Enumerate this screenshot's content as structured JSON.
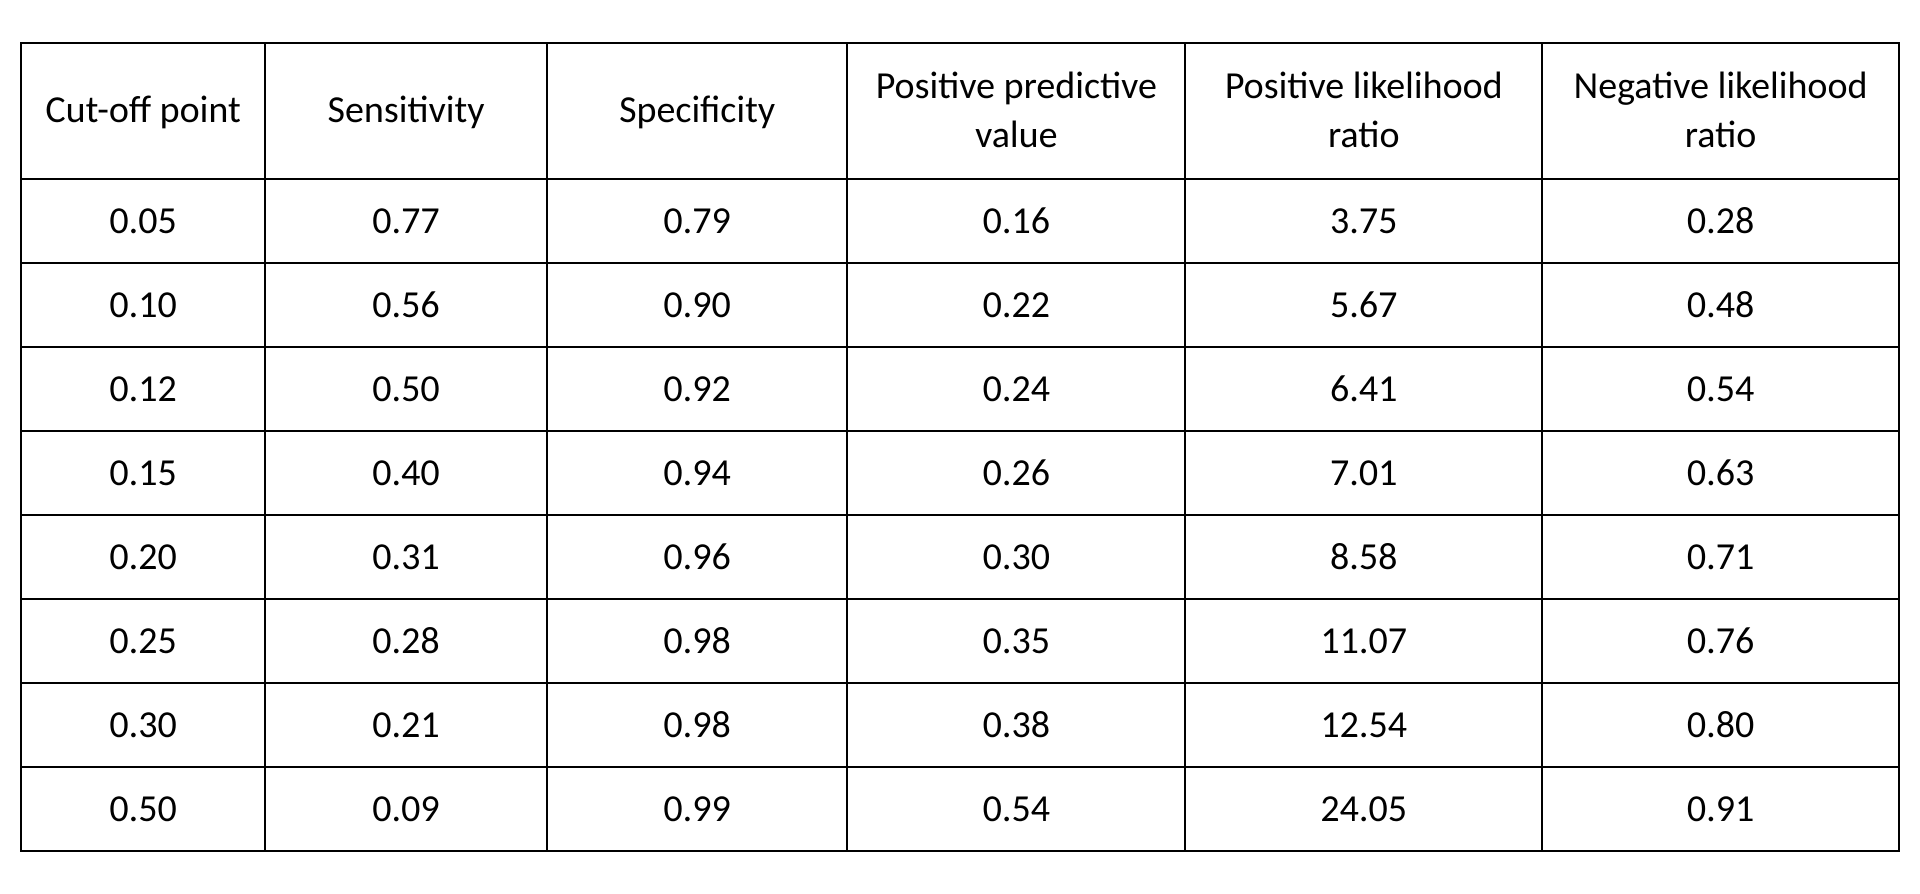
{
  "table": {
    "columns": [
      "Cut-off point",
      "Sensitivity",
      "Specificity",
      "Positive predictive value",
      "Positive likelihood ratio",
      "Negative likelihood ratio"
    ],
    "rows": [
      [
        "0.05",
        "0.77",
        "0.79",
        "0.16",
        "3.75",
        "0.28"
      ],
      [
        "0.10",
        "0.56",
        "0.90",
        "0.22",
        "5.67",
        "0.48"
      ],
      [
        "0.12",
        "0.50",
        "0.92",
        "0.24",
        "6.41",
        "0.54"
      ],
      [
        "0.15",
        "0.40",
        "0.94",
        "0.26",
        "7.01",
        "0.63"
      ],
      [
        "0.20",
        "0.31",
        "0.96",
        "0.30",
        "8.58",
        "0.71"
      ],
      [
        "0.25",
        "0.28",
        "0.98",
        "0.35",
        "11.07",
        "0.76"
      ],
      [
        "0.30",
        "0.21",
        "0.98",
        "0.38",
        "12.54",
        "0.80"
      ],
      [
        "0.50",
        "0.09",
        "0.99",
        "0.54",
        "24.05",
        "0.91"
      ]
    ],
    "header_fontsize": 38,
    "cell_fontsize": 38,
    "border_color": "#000000",
    "background_color": "#ffffff",
    "text_color": "#000000",
    "col_widths": [
      "13%",
      "15%",
      "16%",
      "18%",
      "19%",
      "19%"
    ]
  }
}
